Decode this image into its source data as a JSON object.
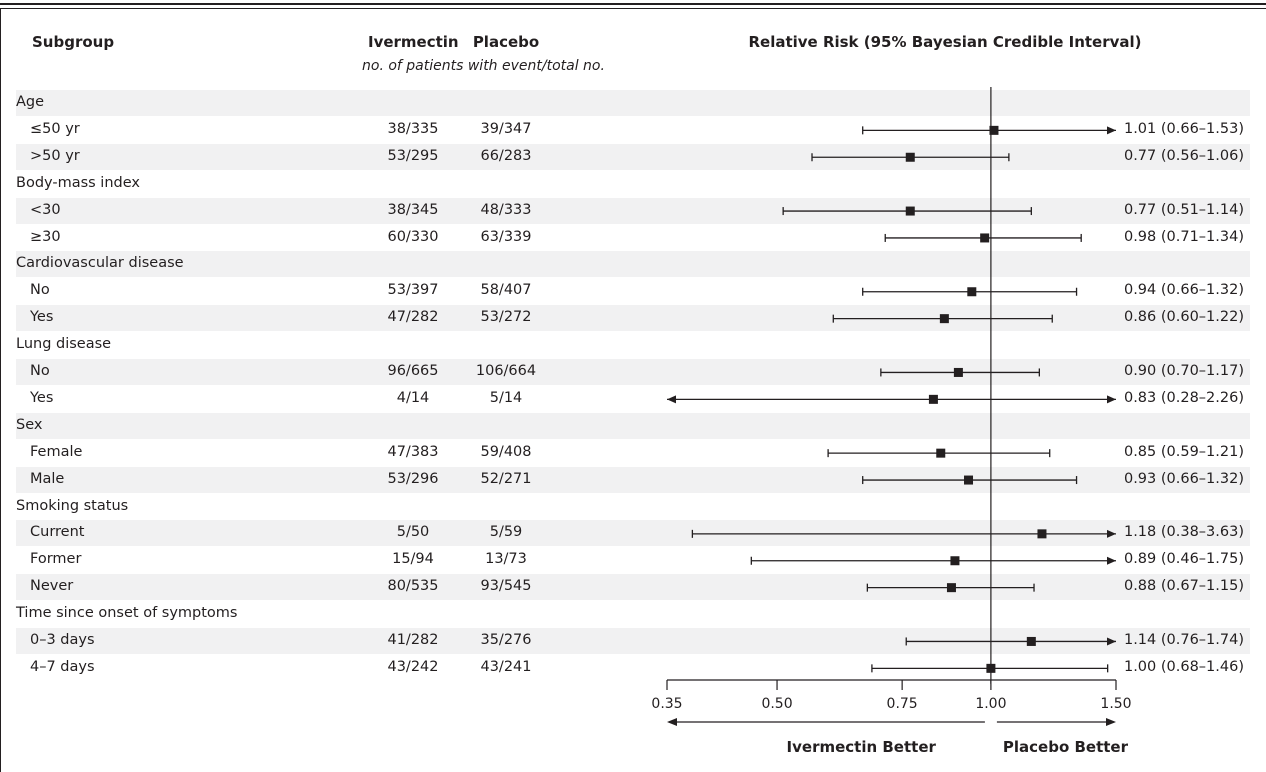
{
  "headers": {
    "subgroup": "Subgroup",
    "ivermectin": "Ivermectin",
    "placebo": "Placebo",
    "subheader": "no. of patients with event/total no.",
    "rr": "Relative Risk (95% Bayesian Credible Interval)"
  },
  "rows": [
    {
      "kind": "group",
      "label": "Age"
    },
    {
      "kind": "sub",
      "label": "≤50 yr",
      "ivermectin": "38/335",
      "placebo": "39/347",
      "rr_text": "1.01 (0.66–1.53)"
    },
    {
      "kind": "sub",
      "label": ">50 yr",
      "ivermectin": "53/295",
      "placebo": "66/283",
      "rr_text": "0.77 (0.56–1.06)"
    },
    {
      "kind": "group",
      "label": "Body-mass index"
    },
    {
      "kind": "sub",
      "label": "<30",
      "ivermectin": "38/345",
      "placebo": "48/333",
      "rr_text": "0.77 (0.51–1.14)"
    },
    {
      "kind": "sub",
      "label": "≥30",
      "ivermectin": "60/330",
      "placebo": "63/339",
      "rr_text": "0.98 (0.71–1.34)"
    },
    {
      "kind": "group",
      "label": "Cardiovascular disease"
    },
    {
      "kind": "sub",
      "label": "No",
      "ivermectin": "53/397",
      "placebo": "58/407",
      "rr_text": "0.94 (0.66–1.32)"
    },
    {
      "kind": "sub",
      "label": "Yes",
      "ivermectin": "47/282",
      "placebo": "53/272",
      "rr_text": "0.86 (0.60–1.22)"
    },
    {
      "kind": "group",
      "label": "Lung disease"
    },
    {
      "kind": "sub",
      "label": "No",
      "ivermectin": "96/665",
      "placebo": "106/664",
      "rr_text": "0.90 (0.70–1.17)"
    },
    {
      "kind": "sub",
      "label": "Yes",
      "ivermectin": "4/14",
      "placebo": "5/14",
      "rr_text": "0.83 (0.28–2.26)"
    },
    {
      "kind": "group",
      "label": "Sex"
    },
    {
      "kind": "sub",
      "label": "Female",
      "ivermectin": "47/383",
      "placebo": "59/408",
      "rr_text": "0.85 (0.59–1.21)"
    },
    {
      "kind": "sub",
      "label": "Male",
      "ivermectin": "53/296",
      "placebo": "52/271",
      "rr_text": "0.93 (0.66–1.32)"
    },
    {
      "kind": "group",
      "label": "Smoking status"
    },
    {
      "kind": "sub",
      "label": "Current",
      "ivermectin": "5/50",
      "placebo": "5/59",
      "rr_text": "1.18 (0.38–3.63)"
    },
    {
      "kind": "sub",
      "label": "Former",
      "ivermectin": "15/94",
      "placebo": "13/73",
      "rr_text": "0.89 (0.46–1.75)"
    },
    {
      "kind": "sub",
      "label": "Never",
      "ivermectin": "80/535",
      "placebo": "93/545",
      "rr_text": "0.88 (0.67–1.15)"
    },
    {
      "kind": "group",
      "label": "Time since onset of symptoms"
    },
    {
      "kind": "sub",
      "label": "0–3 days",
      "ivermectin": "41/282",
      "placebo": "35/276",
      "rr_text": "1.14 (0.76–1.74)"
    },
    {
      "kind": "sub",
      "label": "4–7 days",
      "ivermectin": "43/242",
      "placebo": "43/241",
      "rr_text": "1.00 (0.68–1.46)"
    }
  ],
  "chart_data": {
    "type": "forest",
    "x_scale": "log",
    "xlim": [
      0.35,
      1.5
    ],
    "xticks": [
      0.35,
      0.5,
      0.75,
      1.0,
      1.5
    ],
    "xtick_labels": [
      "0.35",
      "0.50",
      "0.75",
      "1.00",
      "1.50"
    ],
    "reference_line": 1.0,
    "direction_labels": {
      "left": "Ivermectin Better",
      "right": "Placebo Better"
    },
    "points": [
      {
        "label": "≤50 yr",
        "rr": 1.01,
        "lo": 0.66,
        "hi": 1.53
      },
      {
        "label": ">50 yr",
        "rr": 0.77,
        "lo": 0.56,
        "hi": 1.06
      },
      {
        "label": "<30",
        "rr": 0.77,
        "lo": 0.51,
        "hi": 1.14
      },
      {
        "label": "≥30",
        "rr": 0.98,
        "lo": 0.71,
        "hi": 1.34
      },
      {
        "label": "No",
        "rr": 0.94,
        "lo": 0.66,
        "hi": 1.32
      },
      {
        "label": "Yes",
        "rr": 0.86,
        "lo": 0.6,
        "hi": 1.22
      },
      {
        "label": "No",
        "rr": 0.9,
        "lo": 0.7,
        "hi": 1.17
      },
      {
        "label": "Yes",
        "rr": 0.83,
        "lo": 0.28,
        "hi": 2.26
      },
      {
        "label": "Female",
        "rr": 0.85,
        "lo": 0.59,
        "hi": 1.21
      },
      {
        "label": "Male",
        "rr": 0.93,
        "lo": 0.66,
        "hi": 1.32
      },
      {
        "label": "Current",
        "rr": 1.18,
        "lo": 0.38,
        "hi": 3.63
      },
      {
        "label": "Former",
        "rr": 0.89,
        "lo": 0.46,
        "hi": 1.75
      },
      {
        "label": "Never",
        "rr": 0.88,
        "lo": 0.67,
        "hi": 1.15
      },
      {
        "label": "0–3 days",
        "rr": 1.14,
        "lo": 0.76,
        "hi": 1.74
      },
      {
        "label": "4–7 days",
        "rr": 1.0,
        "lo": 0.68,
        "hi": 1.46
      }
    ]
  }
}
